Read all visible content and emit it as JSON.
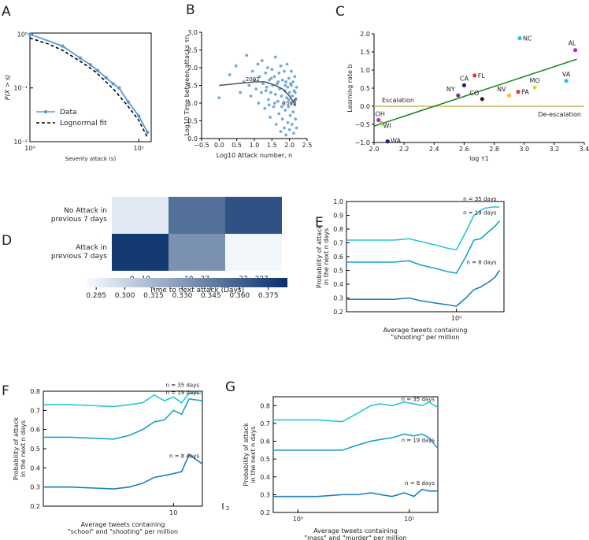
{
  "panels": {
    "A": {
      "letter": "A",
      "chart_data": {
        "type": "line",
        "xscale": "log",
        "yscale": "log",
        "xlim": [
          1,
          13
        ],
        "ylim": [
          0.01,
          1.05
        ],
        "xlabel": "Severity attack (s)",
        "ylabel": "P(X > s)",
        "xticks": [
          {
            "v": 1,
            "label": "10⁰"
          },
          {
            "v": 10,
            "label": "10¹"
          }
        ],
        "yticks": [
          {
            "v": 1,
            "label": "10⁰"
          },
          {
            "v": 0.1,
            "label": "10⁻¹"
          },
          {
            "v": 0.01,
            "label": "10⁻²"
          }
        ],
        "legend_position": "lower-left",
        "series": [
          {
            "name": "Data",
            "color": "#5b9bd5",
            "style": "line-marker",
            "x": [
              1,
              2,
              2.9,
              3.6,
              4.2,
              5,
              5.8,
              6.6,
              8,
              10,
              12
            ],
            "y": [
              1,
              0.6,
              0.36,
              0.27,
              0.21,
              0.155,
              0.12,
              0.1,
              0.055,
              0.03,
              0.015
            ]
          },
          {
            "name": "Lognormal fit",
            "color": "#000000",
            "style": "dashed",
            "x": [
              1,
              1.5,
              2,
              3,
              4,
              5,
              6,
              8,
              10,
              12
            ],
            "y": [
              0.85,
              0.65,
              0.5,
              0.3,
              0.2,
              0.13,
              0.09,
              0.045,
              0.025,
              0.012
            ]
          }
        ]
      }
    },
    "B": {
      "letter": "B",
      "chart_data": {
        "type": "scatter",
        "xlim": [
          -0.5,
          2.5
        ],
        "ylim": [
          0,
          3.0
        ],
        "xlabel": "Log10 Attack number, n",
        "ylabel": "Log10 Time between attacks τn",
        "xticks": [
          -0.5,
          0.0,
          0.5,
          1.0,
          1.5,
          2.0,
          2.5
        ],
        "yticks": [
          0.0,
          0.5,
          1.0,
          1.5,
          2.0,
          2.5,
          3.0
        ],
        "annotations": [
          {
            "text": "2002",
            "x": 0.95,
            "y": 1.62
          },
          {
            "text": "2016",
            "x": 2.0,
            "y": 0.95
          }
        ],
        "color": "#5b9bd5",
        "points": [
          [
            0,
            1.15
          ],
          [
            0.3,
            1.8
          ],
          [
            0.48,
            2.05
          ],
          [
            0.6,
            1.3
          ],
          [
            0.7,
            1.6
          ],
          [
            0.78,
            2.35
          ],
          [
            0.85,
            1.5
          ],
          [
            0.9,
            1.2
          ],
          [
            0.95,
            1.9
          ],
          [
            1.0,
            1.65
          ],
          [
            1.05,
            1.4
          ],
          [
            1.1,
            2.1
          ],
          [
            1.12,
            1.0
          ],
          [
            1.15,
            1.75
          ],
          [
            1.2,
            1.3
          ],
          [
            1.22,
            2.2
          ],
          [
            1.25,
            1.55
          ],
          [
            1.3,
            0.85
          ],
          [
            1.32,
            1.85
          ],
          [
            1.35,
            1.45
          ],
          [
            1.38,
            2.0
          ],
          [
            1.4,
            1.1
          ],
          [
            1.42,
            1.65
          ],
          [
            1.45,
            0.6
          ],
          [
            1.47,
            1.3
          ],
          [
            1.5,
            1.95
          ],
          [
            1.52,
            1.5
          ],
          [
            1.55,
            0.9
          ],
          [
            1.57,
            1.75
          ],
          [
            1.6,
            1.25
          ],
          [
            1.6,
            2.3
          ],
          [
            1.62,
            0.4
          ],
          [
            1.65,
            1.55
          ],
          [
            1.67,
            1.05
          ],
          [
            1.7,
            1.85
          ],
          [
            1.7,
            0.7
          ],
          [
            1.72,
            1.4
          ],
          [
            1.75,
            2.05
          ],
          [
            1.75,
            0.2
          ],
          [
            1.77,
            1.2
          ],
          [
            1.8,
            1.65
          ],
          [
            1.8,
            0.55
          ],
          [
            1.82,
            1.0
          ],
          [
            1.85,
            1.9
          ],
          [
            1.85,
            0.3
          ],
          [
            1.87,
            1.35
          ],
          [
            1.88,
            0.8
          ],
          [
            1.9,
            1.6
          ],
          [
            1.9,
            0.1
          ],
          [
            1.92,
            1.15
          ],
          [
            1.93,
            2.1
          ],
          [
            1.95,
            0.45
          ],
          [
            1.95,
            1.45
          ],
          [
            1.97,
            0.9
          ],
          [
            1.98,
            1.7
          ],
          [
            2.0,
            0.25
          ],
          [
            2.0,
            1.3
          ],
          [
            2.02,
            0.65
          ],
          [
            2.03,
            1.55
          ],
          [
            2.05,
            1.0
          ],
          [
            2.05,
            1.9
          ],
          [
            2.07,
            0.4
          ],
          [
            2.08,
            1.2
          ],
          [
            2.1,
            0.75
          ],
          [
            2.1,
            1.6
          ],
          [
            2.12,
            0.15
          ],
          [
            2.13,
            1.35
          ],
          [
            2.15,
            0.95
          ],
          [
            2.15,
            1.75
          ],
          [
            2.17,
            0.55
          ],
          [
            2.18,
            1.1
          ],
          [
            2.2,
            1.45
          ],
          [
            2.2,
            0.3
          ],
          [
            2.05,
            1.5
          ],
          [
            1.98,
            1.1
          ],
          [
            1.88,
            1.5
          ],
          [
            1.78,
            0.9
          ],
          [
            1.68,
            1.6
          ],
          [
            1.58,
            1.0
          ],
          [
            1.48,
            1.7
          ],
          [
            1.42,
            0.95
          ],
          [
            1.33,
            1.35
          ],
          [
            2.12,
            1.05
          ],
          [
            2.16,
            1.3
          ]
        ],
        "trend": [
          [
            0,
            1.5
          ],
          [
            0.5,
            1.55
          ],
          [
            1.0,
            1.6
          ],
          [
            1.3,
            1.6
          ],
          [
            1.6,
            1.5
          ],
          [
            1.8,
            1.4
          ],
          [
            2.0,
            1.2
          ],
          [
            2.1,
            1.05
          ],
          [
            2.2,
            1.15
          ]
        ]
      }
    },
    "C": {
      "letter": "C",
      "chart_data": {
        "type": "scatter",
        "xlim": [
          2.0,
          3.4
        ],
        "ylim": [
          -1.0,
          2.0
        ],
        "xlabel": "log τ1",
        "ylabel": "Learning rate b",
        "xticks": [
          2.0,
          2.2,
          2.4,
          2.6,
          2.8,
          3.0,
          3.2,
          3.4
        ],
        "yticks": [
          -1.0,
          -0.5,
          0.0,
          0.5,
          1.0,
          1.5,
          2.0
        ],
        "regions": [
          {
            "text": "Escalation",
            "side": "left"
          },
          {
            "text": "De-escalation",
            "side": "right"
          }
        ],
        "fit_line": {
          "color": "#1e8a1e",
          "x": [
            2.0,
            3.35
          ],
          "y": [
            -0.55,
            1.3
          ]
        },
        "zero_line_color": "#c8b864",
        "points": [
          {
            "label": "NC",
            "x": 2.97,
            "y": 1.88,
            "color": "#26c6da"
          },
          {
            "label": "AL",
            "x": 3.34,
            "y": 1.55,
            "color": "#c026d3"
          },
          {
            "label": "FL",
            "x": 2.67,
            "y": 0.85,
            "color": "#e53935"
          },
          {
            "label": "CA",
            "x": 2.6,
            "y": 0.58,
            "color": "#1a237e"
          },
          {
            "label": "VA",
            "x": 3.28,
            "y": 0.7,
            "color": "#26c6da"
          },
          {
            "label": "MO",
            "x": 3.07,
            "y": 0.52,
            "color": "#cddc39"
          },
          {
            "label": "NY",
            "x": 2.56,
            "y": 0.3,
            "color": "#8e24aa"
          },
          {
            "label": "PA",
            "x": 2.96,
            "y": 0.4,
            "color": "#e53935"
          },
          {
            "label": "NV",
            "x": 2.9,
            "y": 0.3,
            "color": "#fbc02d"
          },
          {
            "label": "CO",
            "x": 2.72,
            "y": 0.2,
            "color": "#222222"
          },
          {
            "label": "OH",
            "x": 2.03,
            "y": -0.38,
            "color": "#c026d3"
          },
          {
            "label": "WI",
            "x": 2.05,
            "y": -0.47,
            "color": "#8bc34a"
          },
          {
            "label": "WA",
            "x": 2.09,
            "y": -0.97,
            "color": "#1a237e"
          }
        ]
      }
    },
    "D": {
      "letter": "D",
      "chart_data": {
        "type": "heatmap",
        "rows": [
          "No Attack in\nprevious 7 days",
          "Attack in\nprevious 7 days"
        ],
        "columns": [
          "0 - 10",
          "10 - 27",
          "27 - 227"
        ],
        "xlabel": "Time to next attack (Days)",
        "values": [
          [
            0.29,
            0.352,
            0.368
          ],
          [
            0.38,
            0.335,
            0.282
          ]
        ],
        "colorbar": {
          "min": 0.28,
          "max": 0.385,
          "ticks": [
            "0.285",
            "0.300",
            "0.315",
            "0.330",
            "0.345",
            "0.360",
            "0.375"
          ],
          "tick_values": [
            0.285,
            0.3,
            0.315,
            0.33,
            0.345,
            0.36,
            0.375
          ]
        }
      }
    },
    "E": {
      "letter": "E",
      "chart_data": {
        "type": "line",
        "xscale": "log",
        "xlim": [
          0.12,
          2.5
        ],
        "ylim": [
          0.2,
          1.0
        ],
        "xlabel": "Average tweets containing\n\"shooting\" per million",
        "ylabel": "Probability of attack\nin the next n days",
        "xticks": [
          {
            "v": 1,
            "label": "10⁰"
          }
        ],
        "yticks": [
          0.2,
          0.3,
          0.4,
          0.5,
          0.6,
          0.7,
          0.8,
          0.9,
          1.0
        ],
        "series": [
          {
            "name": "n = 35 days",
            "color": "#26c6da",
            "x": [
              0.12,
              0.3,
              0.4,
              0.5,
              0.7,
              0.85,
              1.0,
              1.2,
              1.4,
              1.7,
              2.0,
              2.3
            ],
            "y": [
              0.72,
              0.72,
              0.73,
              0.71,
              0.68,
              0.66,
              0.65,
              0.78,
              0.9,
              0.95,
              0.96,
              0.96
            ]
          },
          {
            "name": "n = 19 days",
            "color": "#1ba3c6",
            "x": [
              0.12,
              0.3,
              0.4,
              0.5,
              0.7,
              0.85,
              1.0,
              1.2,
              1.4,
              1.6,
              1.8,
              2.1,
              2.3
            ],
            "y": [
              0.56,
              0.56,
              0.57,
              0.54,
              0.51,
              0.49,
              0.48,
              0.6,
              0.72,
              0.73,
              0.77,
              0.82,
              0.86
            ]
          },
          {
            "name": "n = 8 days",
            "color": "#1a7fbf",
            "x": [
              0.12,
              0.3,
              0.4,
              0.5,
              0.7,
              0.85,
              1.0,
              1.2,
              1.4,
              1.6,
              1.9,
              2.1,
              2.3
            ],
            "y": [
              0.29,
              0.29,
              0.3,
              0.28,
              0.26,
              0.25,
              0.24,
              0.3,
              0.36,
              0.38,
              0.42,
              0.45,
              0.5
            ]
          }
        ]
      }
    },
    "F": {
      "letter": "F",
      "chart_data": {
        "type": "line",
        "xscale": "log",
        "xlim": [
          2.2,
          14
        ],
        "ylim": [
          0.2,
          0.8
        ],
        "xlabel": "Average tweets containing\n\"school\" and \"shooting\" per million",
        "ylabel": "Probability of attack\nin the next n days",
        "xticks": [
          {
            "v": 10,
            "label": "10"
          }
        ],
        "yticks": [
          0.2,
          0.3,
          0.4,
          0.5,
          0.6,
          0.7,
          0.8
        ],
        "extra_ticks": [
          {
            "text": "2"
          }
        ],
        "series": [
          {
            "name": "n = 35 days",
            "color": "#26c6da",
            "x": [
              2.2,
              3,
              5,
              6,
              7,
              8,
              9,
              10,
              11,
              12,
              14
            ],
            "y": [
              0.73,
              0.73,
              0.72,
              0.73,
              0.74,
              0.78,
              0.75,
              0.77,
              0.74,
              0.79,
              0.79
            ]
          },
          {
            "name": "n = 19 days",
            "color": "#1ba3c6",
            "x": [
              2.2,
              3,
              5,
              6,
              7,
              8,
              9,
              10,
              11,
              12,
              14
            ],
            "y": [
              0.56,
              0.56,
              0.55,
              0.57,
              0.6,
              0.64,
              0.65,
              0.7,
              0.68,
              0.76,
              0.75
            ]
          },
          {
            "name": "n = 8 days",
            "color": "#1a7fbf",
            "x": [
              2.2,
              3,
              5,
              6,
              7,
              8,
              9,
              10,
              11,
              12,
              14
            ],
            "y": [
              0.3,
              0.3,
              0.29,
              0.3,
              0.32,
              0.35,
              0.36,
              0.37,
              0.38,
              0.47,
              0.42
            ]
          }
        ]
      }
    },
    "G": {
      "letter": "G",
      "chart_data": {
        "type": "line",
        "xscale": "log",
        "xlim": [
          0.6,
          18
        ],
        "ylim": [
          0.2,
          0.85
        ],
        "xlabel": "Average tweets containing\n\"mass\" and \"murder\" per million",
        "ylabel": "Probability of attack\nin the next n days",
        "xticks": [
          {
            "v": 1,
            "label": "10⁰"
          },
          {
            "v": 10,
            "label": "10¹"
          }
        ],
        "yticks": [
          0.2,
          0.3,
          0.4,
          0.5,
          0.6,
          0.7,
          0.8
        ],
        "series": [
          {
            "name": "n = 35 days",
            "color": "#26c6da",
            "x": [
              0.6,
              1,
              1.5,
              2.5,
              3.5,
              4.5,
              5.5,
              7,
              9,
              11,
              13,
              15,
              18
            ],
            "y": [
              0.72,
              0.72,
              0.72,
              0.71,
              0.76,
              0.8,
              0.81,
              0.8,
              0.82,
              0.81,
              0.8,
              0.82,
              0.79
            ]
          },
          {
            "name": "n = 19 days",
            "color": "#1ba3c6",
            "x": [
              0.6,
              1,
              1.5,
              2.5,
              3.5,
              4.5,
              5.5,
              7,
              9,
              11,
              13,
              15,
              18
            ],
            "y": [
              0.55,
              0.55,
              0.55,
              0.55,
              0.58,
              0.6,
              0.61,
              0.62,
              0.64,
              0.63,
              0.64,
              0.62,
              0.56
            ]
          },
          {
            "name": "n = 8 days",
            "color": "#1a7fbf",
            "x": [
              0.6,
              1,
              1.5,
              2.5,
              3.5,
              4.5,
              5.5,
              7,
              9,
              11,
              13,
              15,
              18
            ],
            "y": [
              0.29,
              0.29,
              0.29,
              0.3,
              0.3,
              0.31,
              0.3,
              0.29,
              0.31,
              0.29,
              0.33,
              0.32,
              0.32
            ]
          }
        ]
      }
    }
  }
}
